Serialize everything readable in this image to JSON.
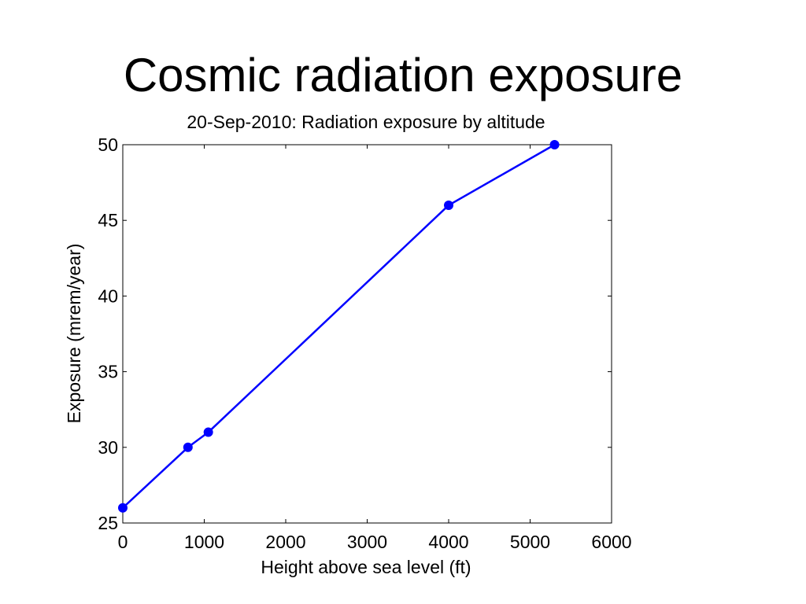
{
  "slide": {
    "title": "Cosmic radiation exposure"
  },
  "chart_data": {
    "type": "line",
    "title": "20-Sep-2010: Radiation exposure by altitude",
    "xlabel": "Height above sea level (ft)",
    "ylabel": "Exposure (mrem/year)",
    "xlim": [
      0,
      6000
    ],
    "ylim": [
      25,
      50
    ],
    "xticks": [
      0,
      1000,
      2000,
      3000,
      4000,
      5000,
      6000
    ],
    "yticks": [
      25,
      30,
      35,
      40,
      45,
      50
    ],
    "grid": false,
    "series": [
      {
        "x": [
          0,
          800,
          1050,
          4000,
          5300
        ],
        "y": [
          26,
          30,
          31,
          46,
          50
        ],
        "color": "#0000ff",
        "marker": "circle"
      }
    ]
  }
}
